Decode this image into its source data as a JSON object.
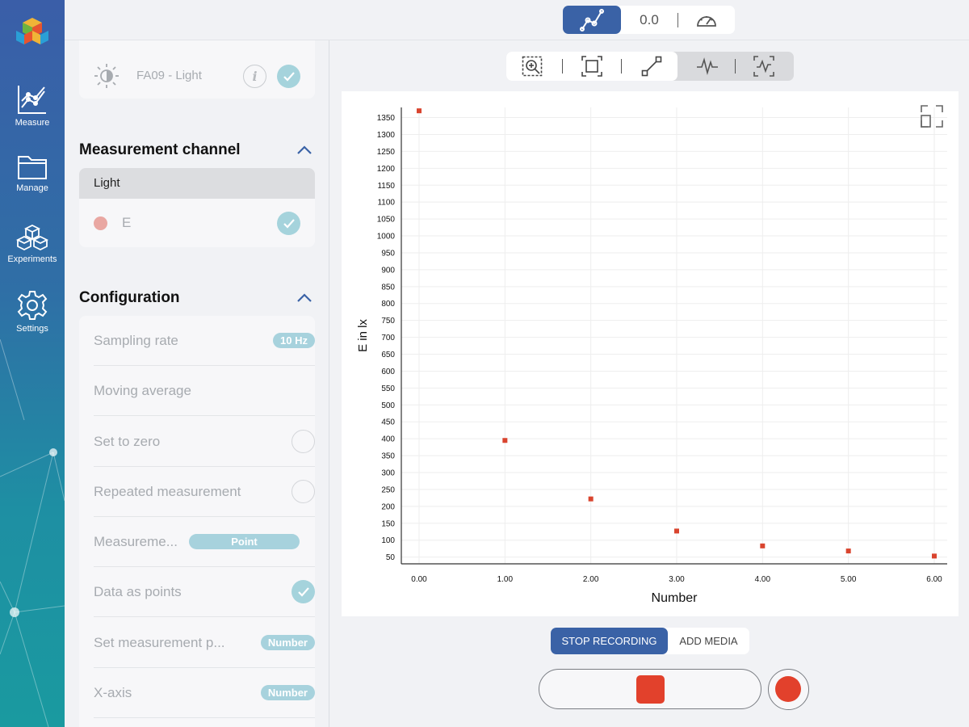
{
  "nav": {
    "items": [
      {
        "label": "Measure",
        "icon": "chart-line-icon"
      },
      {
        "label": "Manage",
        "icon": "folder-icon"
      },
      {
        "label": "Experiments",
        "icon": "cubes-icon"
      },
      {
        "label": "Settings",
        "icon": "gear-icon"
      }
    ]
  },
  "topbar": {
    "value": "0.0"
  },
  "sensor": {
    "name": "FA09 - Light",
    "info": "i"
  },
  "channel": {
    "title": "Measurement channel",
    "group": "Light",
    "item": "E",
    "item_color": "#e9a7a2"
  },
  "config": {
    "title": "Configuration",
    "rows": [
      {
        "label": "Sampling rate",
        "value": "10 Hz"
      },
      {
        "label": "Moving average"
      },
      {
        "label": "Set to zero"
      },
      {
        "label": "Repeated measurement"
      },
      {
        "label": "Measureme...",
        "value": "Point"
      },
      {
        "label": "Data as points"
      },
      {
        "label": "Set measurement p...",
        "value": "Number"
      },
      {
        "label": "X-axis",
        "value": "Number"
      }
    ]
  },
  "controls": {
    "stop_recording": "STOP RECORDING",
    "add_media": "ADD MEDIA"
  },
  "colors": {
    "accent": "#3a62a6",
    "record": "#e2412c",
    "check": "#a5d3dc",
    "point": "#d9442e"
  },
  "chart_data": {
    "type": "scatter",
    "xlabel": "Number",
    "ylabel": "E in lx",
    "x_ticks": [
      "0.00",
      "1.00",
      "2.00",
      "3.00",
      "4.00",
      "5.00",
      "6.00"
    ],
    "y_ticks": [
      "50",
      "100",
      "150",
      "200",
      "250",
      "300",
      "350",
      "400",
      "450",
      "500",
      "550",
      "600",
      "650",
      "700",
      "750",
      "800",
      "850",
      "900",
      "950",
      "1000",
      "1050",
      "1100",
      "1150",
      "1200",
      "1250",
      "1300",
      "1350"
    ],
    "xlim": [
      0,
      6
    ],
    "ylim": [
      30,
      1380
    ],
    "grid": true,
    "series": [
      {
        "x": [
          0,
          1,
          2,
          3,
          4,
          5,
          6
        ],
        "y": [
          1370,
          395,
          222,
          127,
          83,
          68,
          53
        ]
      }
    ]
  }
}
